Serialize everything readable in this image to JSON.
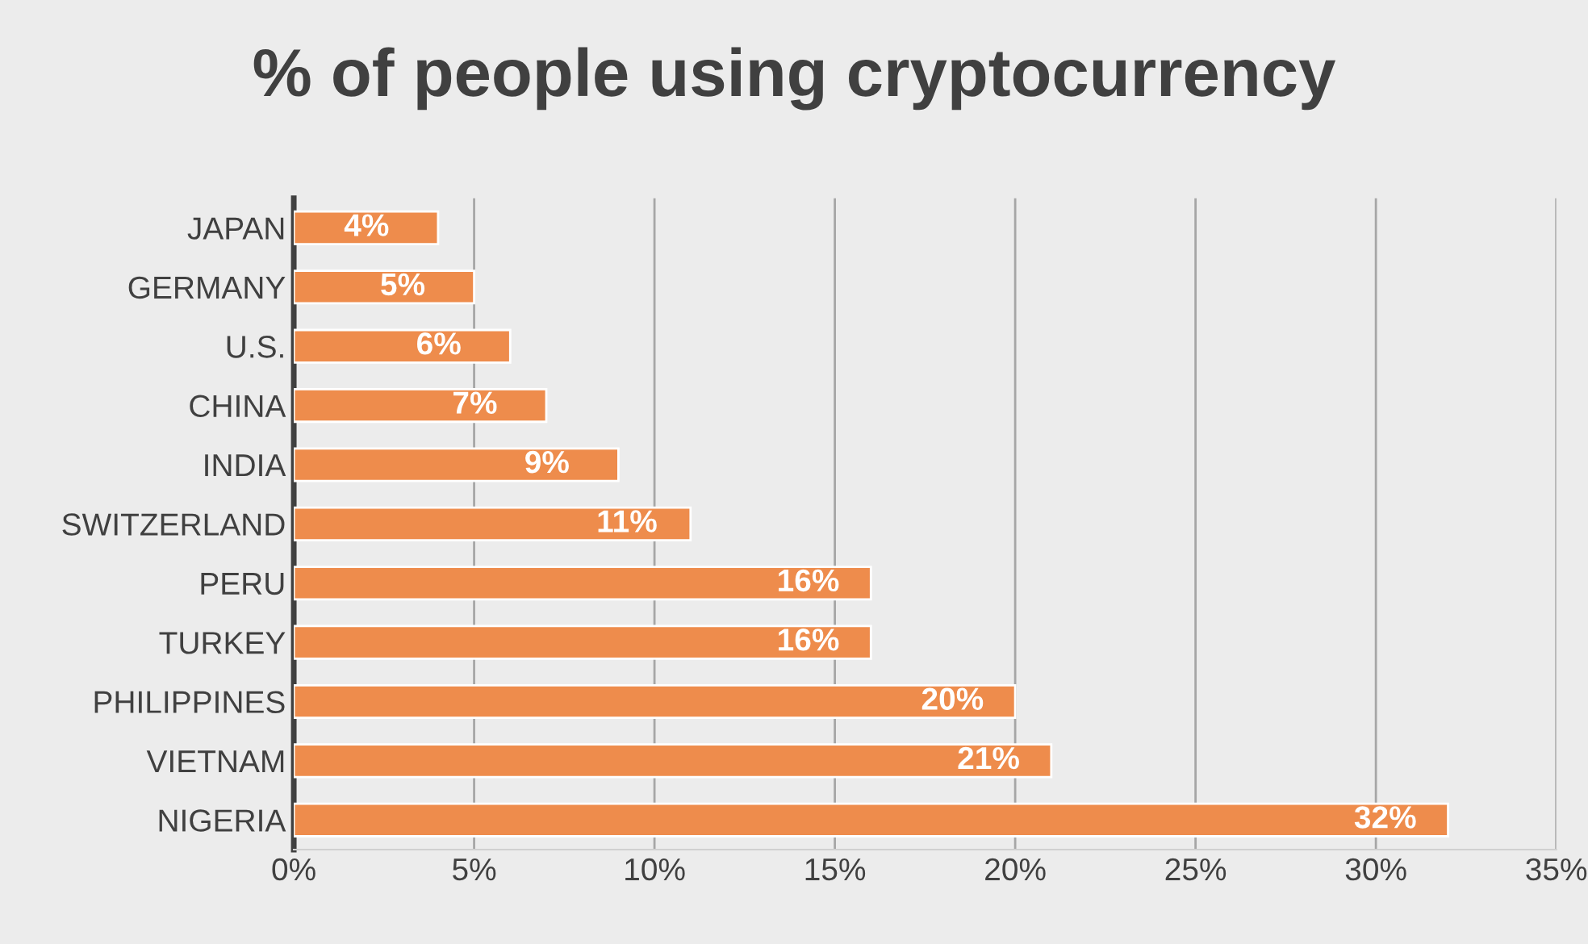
{
  "chart_data": {
    "type": "bar",
    "orientation": "horizontal",
    "title": "% of people using cryptocurrency",
    "categories": [
      "JAPAN",
      "GERMANY",
      "U.S.",
      "CHINA",
      "INDIA",
      "SWITZERLAND",
      "PERU",
      "TURKEY",
      "PHILIPPINES",
      "VIETNAM",
      "NIGERIA"
    ],
    "values": [
      4,
      5,
      6,
      7,
      9,
      11,
      16,
      16,
      20,
      21,
      32
    ],
    "value_labels": [
      "4%",
      "5%",
      "6%",
      "7%",
      "9%",
      "11%",
      "16%",
      "16%",
      "20%",
      "21%",
      "32%"
    ],
    "color": "#ee8c4c",
    "xlim": [
      0,
      35
    ],
    "xticks": [
      {
        "value": 0,
        "label": "0%"
      },
      {
        "value": 5,
        "label": "5%"
      },
      {
        "value": 10,
        "label": "10%"
      },
      {
        "value": 15,
        "label": "15%"
      },
      {
        "value": 20,
        "label": "20%"
      },
      {
        "value": 25,
        "label": "25%"
      },
      {
        "value": 30,
        "label": "30%"
      },
      {
        "value": 35,
        "label": "35%"
      }
    ],
    "grid": "x"
  }
}
